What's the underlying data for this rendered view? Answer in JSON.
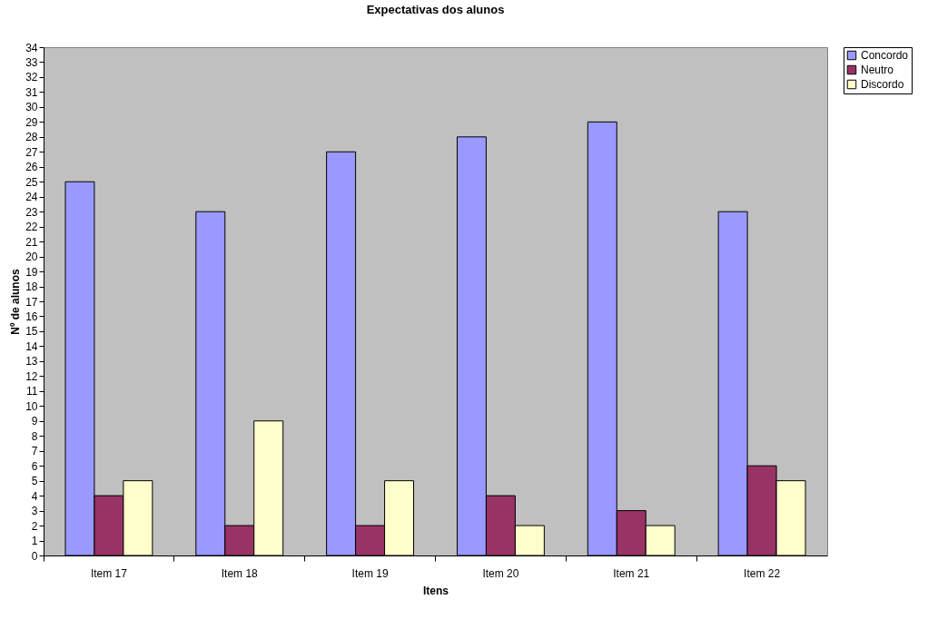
{
  "chart_data": {
    "type": "bar",
    "title": "Expectativas dos alunos",
    "xlabel": "Itens",
    "ylabel": "Nº de alunos",
    "categories": [
      "Item 17",
      "Item 18",
      "Item 19",
      "Item 20",
      "Item 21",
      "Item 22"
    ],
    "series": [
      {
        "name": "Concordo",
        "color": "#9999ff",
        "values": [
          25,
          23,
          27,
          28,
          29,
          23
        ]
      },
      {
        "name": "Neutro",
        "color": "#993366",
        "values": [
          4,
          2,
          2,
          4,
          3,
          6
        ]
      },
      {
        "name": "Discordo",
        "color": "#ffffcc",
        "values": [
          5,
          9,
          5,
          2,
          2,
          5
        ]
      }
    ],
    "ylim": [
      0,
      34
    ],
    "yticks": [
      0,
      1,
      2,
      3,
      4,
      5,
      6,
      7,
      8,
      9,
      10,
      11,
      12,
      13,
      14,
      15,
      16,
      17,
      18,
      19,
      20,
      21,
      22,
      23,
      24,
      25,
      26,
      27,
      28,
      29,
      30,
      31,
      32,
      33,
      34
    ],
    "grid": false,
    "legend": "right"
  }
}
